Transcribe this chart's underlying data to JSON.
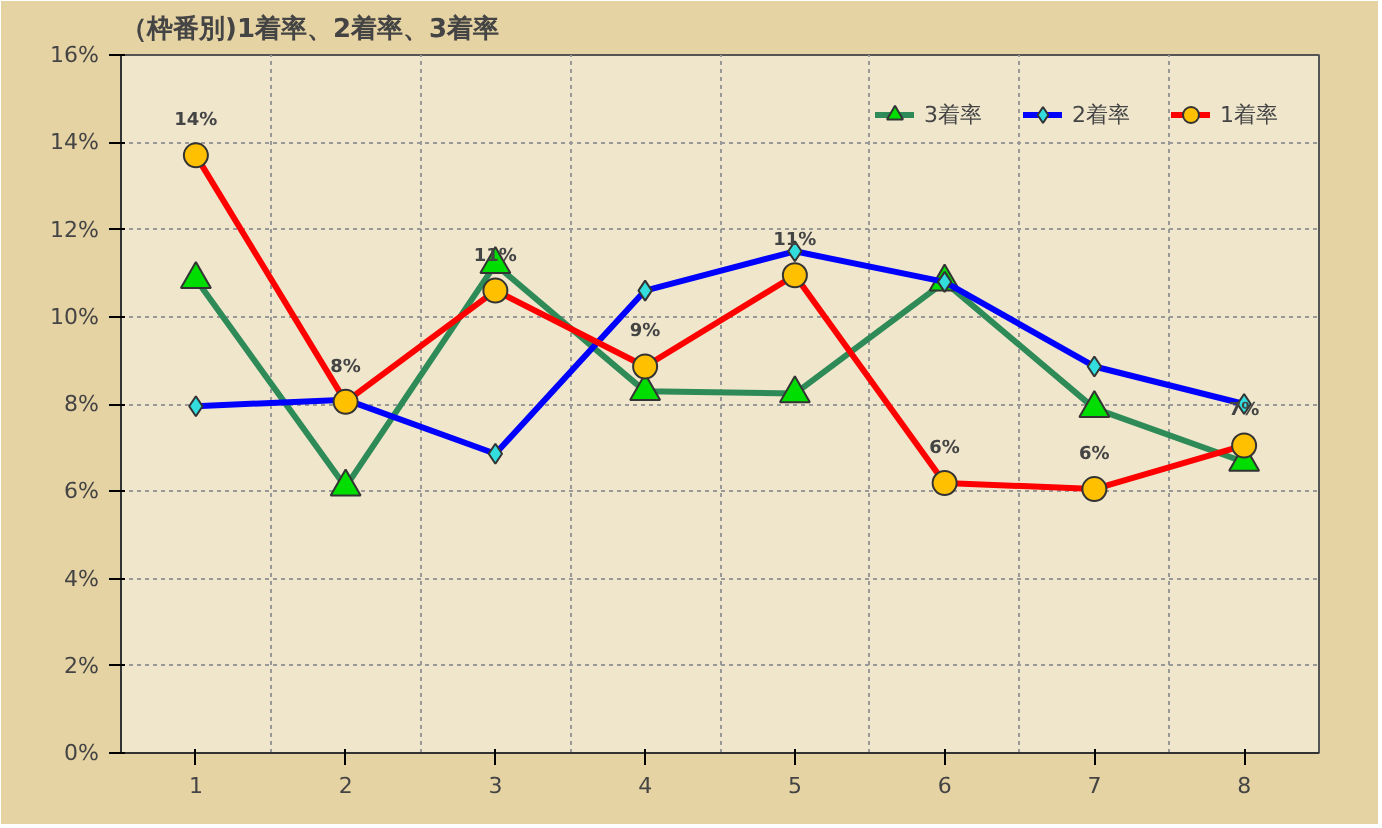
{
  "chart_data": {
    "type": "line",
    "title": "（枠番別)1着率、2着率、3着率",
    "categories": [
      "1",
      "2",
      "3",
      "4",
      "5",
      "6",
      "7",
      "8"
    ],
    "series": [
      {
        "name": "3着率",
        "color": "#2e8b57",
        "marker": "triangle",
        "values": [
          10.86,
          6.1,
          11.2,
          8.29,
          8.24,
          10.8,
          7.9,
          6.67
        ]
      },
      {
        "name": "2着率",
        "color": "#0000ff",
        "marker": "diamond",
        "values": [
          7.95,
          8.1,
          6.86,
          10.6,
          11.5,
          10.8,
          8.86,
          8.0
        ]
      },
      {
        "name": "1着率",
        "color": "#ff0000",
        "marker": "circle",
        "values": [
          13.7,
          8.05,
          10.6,
          8.86,
          10.95,
          6.19,
          6.05,
          7.05
        ],
        "value_labels": [
          "14%",
          "8%",
          "11%",
          "9%",
          "11%",
          "6%",
          "6%",
          "7%"
        ]
      }
    ],
    "ylim": [
      0,
      16
    ],
    "yticks": [
      {
        "value": 0,
        "label": "0%"
      },
      {
        "value": 2,
        "label": "2%"
      },
      {
        "value": 4,
        "label": "4%"
      },
      {
        "value": 6,
        "label": "6%"
      },
      {
        "value": 8,
        "label": "8%"
      },
      {
        "value": 10,
        "label": "10%"
      },
      {
        "value": 12,
        "label": "12%"
      },
      {
        "value": 14,
        "label": "14%"
      },
      {
        "value": 16,
        "label": "16%"
      }
    ],
    "grid": true,
    "legend": "top right",
    "line_style": "solid"
  }
}
